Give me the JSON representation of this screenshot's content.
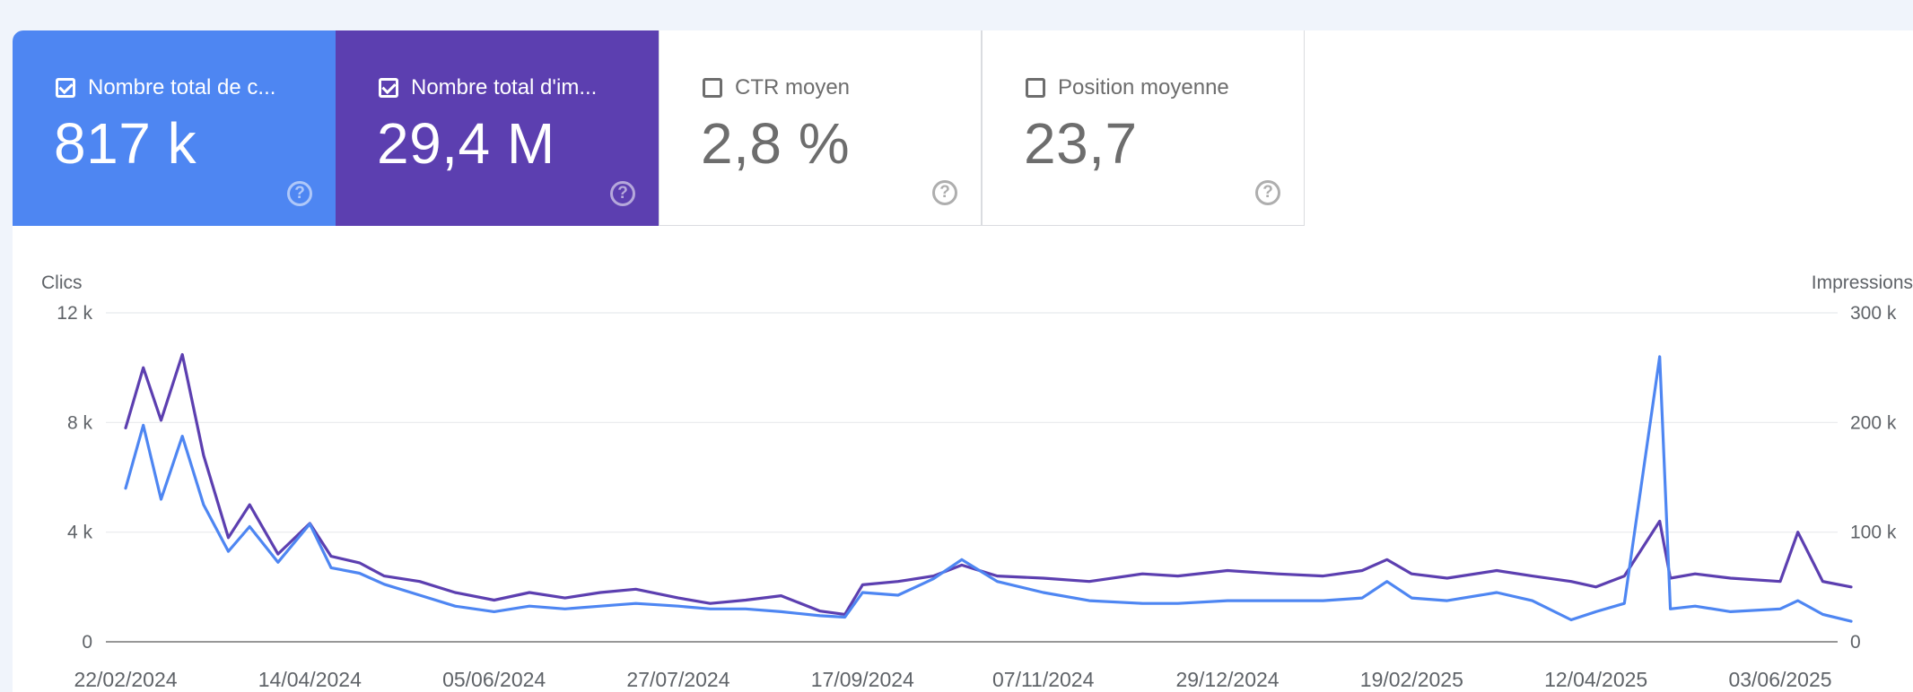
{
  "cards": [
    {
      "label": "Nombre total de c...",
      "value": "817 k",
      "checked": true,
      "color": "#4e86f2"
    },
    {
      "label": "Nombre total d'im...",
      "value": "29,4 M",
      "checked": true,
      "color": "#5c3fb0"
    },
    {
      "label": "CTR moyen",
      "value": "2,8 %",
      "checked": false,
      "color": "#ffffff"
    },
    {
      "label": "Position moyenne",
      "value": "23,7",
      "checked": false,
      "color": "#ffffff"
    }
  ],
  "chart_data": {
    "type": "line",
    "ylabel_left": "Clics",
    "ylabel_right": "Impressions",
    "y_left_ticks": [
      "0",
      "4 k",
      "8 k",
      "12 k"
    ],
    "y_right_ticks": [
      "0",
      "100 k",
      "200 k",
      "300 k"
    ],
    "ylim_left": [
      0,
      12000
    ],
    "ylim_right": [
      0,
      300000
    ],
    "x_ticks": [
      "22/02/2024",
      "14/04/2024",
      "05/06/2024",
      "27/07/2024",
      "17/09/2024",
      "07/11/2024",
      "29/12/2024",
      "19/02/2025",
      "12/04/2025",
      "03/06/2025"
    ],
    "x_range": [
      "22/02/2024",
      "23/06/2025"
    ],
    "grid": true,
    "series": [
      {
        "axis": "left",
        "color": "#4e86f2",
        "points": [
          [
            "22/02/2024",
            5600
          ],
          [
            "27/02/2024",
            7900
          ],
          [
            "03/03/2024",
            5200
          ],
          [
            "09/03/2024",
            7500
          ],
          [
            "15/03/2024",
            5000
          ],
          [
            "22/03/2024",
            3300
          ],
          [
            "28/03/2024",
            4200
          ],
          [
            "05/04/2024",
            2900
          ],
          [
            "14/04/2024",
            4300
          ],
          [
            "20/04/2024",
            2700
          ],
          [
            "28/04/2024",
            2500
          ],
          [
            "05/05/2024",
            2100
          ],
          [
            "15/05/2024",
            1700
          ],
          [
            "25/05/2024",
            1300
          ],
          [
            "05/06/2024",
            1100
          ],
          [
            "15/06/2024",
            1300
          ],
          [
            "25/06/2024",
            1200
          ],
          [
            "05/07/2024",
            1300
          ],
          [
            "15/07/2024",
            1400
          ],
          [
            "27/07/2024",
            1300
          ],
          [
            "05/08/2024",
            1200
          ],
          [
            "15/08/2024",
            1200
          ],
          [
            "25/08/2024",
            1100
          ],
          [
            "05/09/2024",
            950
          ],
          [
            "12/09/2024",
            900
          ],
          [
            "17/09/2024",
            1800
          ],
          [
            "27/09/2024",
            1700
          ],
          [
            "07/10/2024",
            2300
          ],
          [
            "15/10/2024",
            3000
          ],
          [
            "25/10/2024",
            2200
          ],
          [
            "07/11/2024",
            1800
          ],
          [
            "20/11/2024",
            1500
          ],
          [
            "05/12/2024",
            1400
          ],
          [
            "15/12/2024",
            1400
          ],
          [
            "29/12/2024",
            1500
          ],
          [
            "12/01/2025",
            1500
          ],
          [
            "25/01/2025",
            1500
          ],
          [
            "05/02/2025",
            1600
          ],
          [
            "12/02/2025",
            2200
          ],
          [
            "19/02/2025",
            1600
          ],
          [
            "01/03/2025",
            1500
          ],
          [
            "15/03/2025",
            1800
          ],
          [
            "25/03/2025",
            1500
          ],
          [
            "05/04/2025",
            800
          ],
          [
            "12/04/2025",
            1100
          ],
          [
            "20/04/2025",
            1400
          ],
          [
            "30/04/2025",
            10400
          ],
          [
            "03/05/2025",
            1200
          ],
          [
            "10/05/2025",
            1300
          ],
          [
            "20/05/2025",
            1100
          ],
          [
            "03/06/2025",
            1200
          ],
          [
            "08/06/2025",
            1500
          ],
          [
            "15/06/2025",
            1000
          ],
          [
            "23/06/2025",
            750
          ]
        ]
      },
      {
        "axis": "right",
        "color": "#5c3fb0",
        "points": [
          [
            "22/02/2024",
            195000
          ],
          [
            "27/02/2024",
            250000
          ],
          [
            "03/03/2024",
            202000
          ],
          [
            "09/03/2024",
            262000
          ],
          [
            "15/03/2024",
            170000
          ],
          [
            "22/03/2024",
            95000
          ],
          [
            "28/03/2024",
            125000
          ],
          [
            "05/04/2024",
            80000
          ],
          [
            "14/04/2024",
            108000
          ],
          [
            "20/04/2024",
            78000
          ],
          [
            "28/04/2024",
            72000
          ],
          [
            "05/05/2024",
            60000
          ],
          [
            "15/05/2024",
            55000
          ],
          [
            "25/05/2024",
            45000
          ],
          [
            "05/06/2024",
            38000
          ],
          [
            "15/06/2024",
            45000
          ],
          [
            "25/06/2024",
            40000
          ],
          [
            "05/07/2024",
            45000
          ],
          [
            "15/07/2024",
            48000
          ],
          [
            "27/07/2024",
            40000
          ],
          [
            "05/08/2024",
            35000
          ],
          [
            "15/08/2024",
            38000
          ],
          [
            "25/08/2024",
            42000
          ],
          [
            "05/09/2024",
            28000
          ],
          [
            "12/09/2024",
            25000
          ],
          [
            "17/09/2024",
            52000
          ],
          [
            "27/09/2024",
            55000
          ],
          [
            "07/10/2024",
            60000
          ],
          [
            "15/10/2024",
            70000
          ],
          [
            "25/10/2024",
            60000
          ],
          [
            "07/11/2024",
            58000
          ],
          [
            "20/11/2024",
            55000
          ],
          [
            "05/12/2024",
            62000
          ],
          [
            "15/12/2024",
            60000
          ],
          [
            "29/12/2024",
            65000
          ],
          [
            "12/01/2025",
            62000
          ],
          [
            "25/01/2025",
            60000
          ],
          [
            "05/02/2025",
            65000
          ],
          [
            "12/02/2025",
            75000
          ],
          [
            "19/02/2025",
            62000
          ],
          [
            "01/03/2025",
            58000
          ],
          [
            "15/03/2025",
            65000
          ],
          [
            "25/03/2025",
            60000
          ],
          [
            "05/04/2025",
            55000
          ],
          [
            "12/04/2025",
            50000
          ],
          [
            "20/04/2025",
            60000
          ],
          [
            "30/04/2025",
            110000
          ],
          [
            "03/05/2025",
            58000
          ],
          [
            "10/05/2025",
            62000
          ],
          [
            "20/05/2025",
            58000
          ],
          [
            "03/06/2025",
            55000
          ],
          [
            "08/06/2025",
            100000
          ],
          [
            "15/06/2025",
            55000
          ],
          [
            "23/06/2025",
            50000
          ]
        ]
      }
    ]
  }
}
